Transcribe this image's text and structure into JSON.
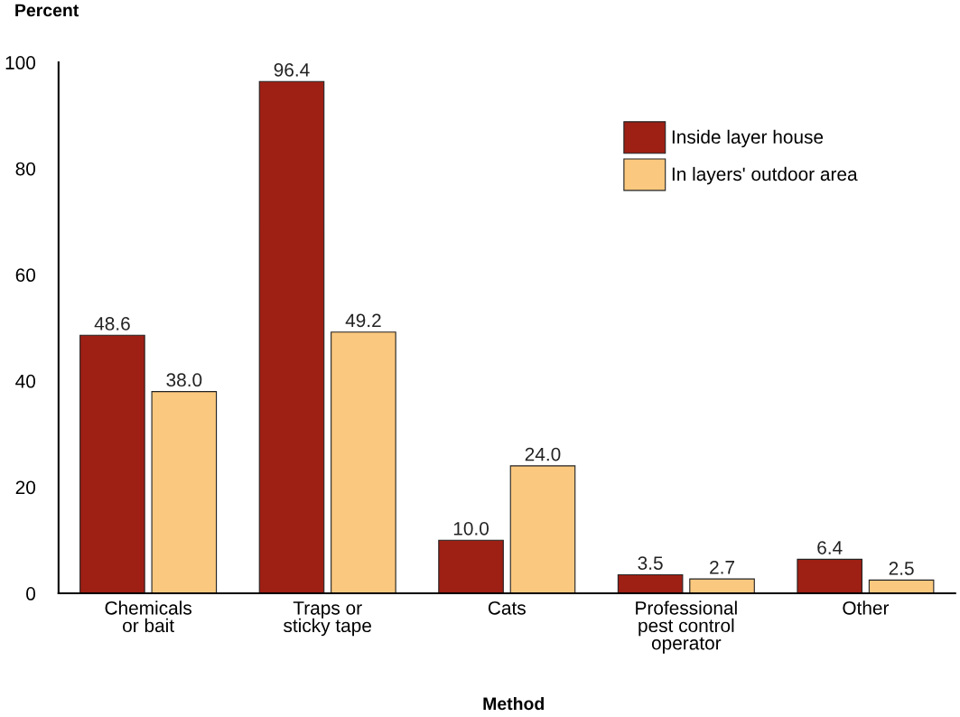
{
  "chart_data": {
    "type": "bar",
    "ylabel": "Percent",
    "xlabel": "Method",
    "categories": [
      "Chemicals\nor bait",
      "Traps or\nsticky tape",
      "Cats",
      "Professional\npest control\noperator",
      "Other"
    ],
    "series": [
      {
        "name": "Inside layer house",
        "color": "#9e1f14",
        "values": [
          48.6,
          96.4,
          10.0,
          3.5,
          6.4
        ],
        "value_labels": [
          "48.6",
          "96.4",
          "10.0",
          "3.5",
          "6.4"
        ]
      },
      {
        "name": "In layers' outdoor area",
        "color": "#fac87f",
        "values": [
          38.0,
          49.2,
          24.0,
          2.7,
          2.5
        ],
        "value_labels": [
          "38.0",
          "49.2",
          "24.0",
          "2.7",
          "2.5"
        ]
      }
    ],
    "ylim": [
      0,
      100
    ],
    "yticks": [
      0,
      20,
      40,
      60,
      80,
      100
    ],
    "grid": false,
    "legend": "top right"
  }
}
